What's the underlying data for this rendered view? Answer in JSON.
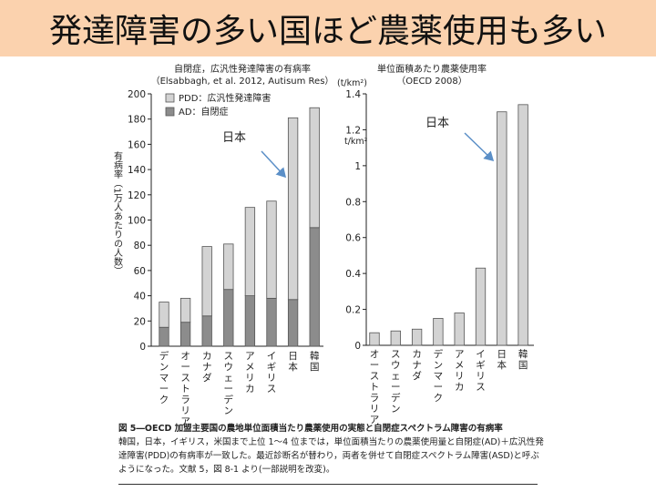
{
  "banner": {
    "title": "発達障害の多い国ほど農薬使用も多い"
  },
  "chart_data": [
    {
      "type": "bar",
      "stacked": true,
      "title": "自閉症，広汎性発達障害の有病率",
      "subtitle": "（Elsabbagh, et al. 2012, Autisum Res）",
      "ylabel": "有病率（1万人あたりの人数）",
      "xlabel": "",
      "ylim": [
        0,
        200
      ],
      "yticks": [
        0,
        20,
        40,
        60,
        80,
        100,
        120,
        140,
        160,
        180,
        200
      ],
      "categories": [
        "デンマーク",
        "オーストラリア",
        "カナダ",
        "スウェーデン",
        "アメリカ",
        "イギリス",
        "日本",
        "韓国"
      ],
      "series": [
        {
          "name": "AD：自閉症",
          "color": "#8c8c8c",
          "values": [
            15,
            19,
            24,
            45,
            40,
            38,
            37,
            94
          ]
        },
        {
          "name": "PDD：広汎性発達障害",
          "color": "#d3d3d3",
          "values": [
            20,
            19,
            55,
            36,
            70,
            77,
            144,
            95
          ]
        }
      ],
      "annotation": "日本",
      "legend_position": "top-left"
    },
    {
      "type": "bar",
      "title": "単位面積あたり農薬使用率",
      "subtitle": "（OECD 2008）",
      "ylabel": "(t/km²)",
      "xlabel": "",
      "ylim": [
        0,
        1.4
      ],
      "yticks": [
        0,
        0.2,
        0.4,
        0.6,
        0.8,
        1,
        1.2,
        1.4
      ],
      "ytick_labels": [
        "0",
        "0.2",
        "0.4",
        "0.6",
        "0.8",
        "1",
        "1.2",
        "1.4"
      ],
      "unit_label": "t/km²",
      "categories": [
        "オーストラリア",
        "スウェーデン",
        "カナダ",
        "デンマーク",
        "アメリカ",
        "イギリス",
        "日本",
        "韓国"
      ],
      "series": [
        {
          "color": "#d3d3d3",
          "values": [
            0.07,
            0.08,
            0.09,
            0.15,
            0.18,
            0.43,
            1.3,
            1.34
          ]
        }
      ],
      "annotation": "日本"
    }
  ],
  "caption": {
    "title": "図 5―OECD 加盟主要国の農地単位面積当たり農薬使用の実態と自閉症スペクトラム障害の有病率",
    "body": "韓国，日本，イギリス，米国まで上位 1～4 位までは，単位面積当たりの農薬使用量と自閉症(AD)＋広汎性発達障害(PDD)の有病率が一致した。最近診断名が替わり，両者を併せて自閉症スペクトラム障害(ASD)と呼ぶようになった。文献 5，図 8-1 より(一部説明を改変)。"
  }
}
